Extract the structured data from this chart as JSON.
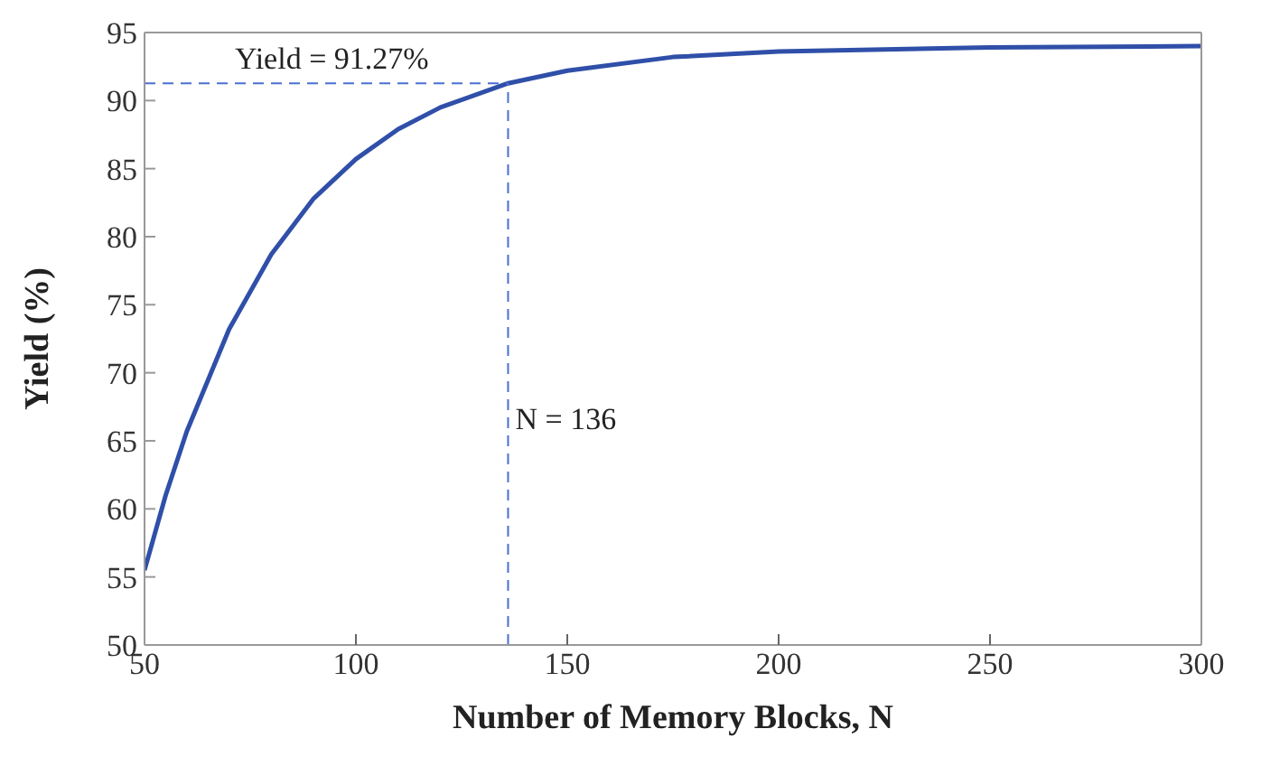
{
  "chart_data": {
    "type": "line",
    "xlabel": "Number of Memory Blocks, N",
    "ylabel": "Yield (%)",
    "x": [
      50,
      55,
      60,
      70,
      80,
      90,
      100,
      110,
      120,
      136,
      150,
      175,
      200,
      250,
      300
    ],
    "series": [
      {
        "color": "#2f4fa8",
        "values": [
          55.5,
          61.0,
          65.7,
          73.2,
          78.7,
          82.8,
          85.7,
          87.9,
          89.5,
          91.27,
          92.2,
          93.2,
          93.6,
          93.9,
          94.0
        ]
      }
    ],
    "xlim": [
      50,
      300
    ],
    "xticks": [
      50,
      100,
      150,
      200,
      250,
      300
    ],
    "ylim": [
      50,
      95
    ],
    "yticks": [
      50,
      55,
      60,
      65,
      70,
      75,
      80,
      85,
      90,
      95
    ],
    "ref_lines": [
      {
        "axis": "y",
        "value": 91.27,
        "label": "Yield = 91.27%",
        "color": "#4a6fd0",
        "line_style": "dashed"
      },
      {
        "axis": "x",
        "value": 136,
        "label": "N = 136",
        "color": "#4a6fd0",
        "line_style": "dashed"
      }
    ],
    "grid": false,
    "legend": false,
    "marker": "none",
    "line_style": "solid"
  }
}
